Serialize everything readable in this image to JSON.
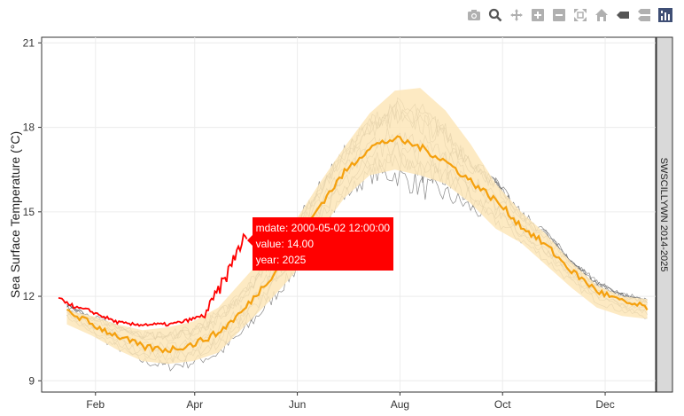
{
  "chart_data": {
    "type": "line",
    "ylabel": "Sea Surface Temperature (°C)",
    "facet_label": "SWSCILLYWN 2014-2025",
    "x_tick_labels": [
      "Feb",
      "Apr",
      "Jun",
      "Aug",
      "Oct",
      "Dec"
    ],
    "x_tick_doy": [
      32,
      91,
      152,
      213,
      274,
      335
    ],
    "xlim_doy": [
      0,
      365
    ],
    "ylim": [
      8.6,
      21.2
    ],
    "y_ticks": [
      9,
      12,
      15,
      18,
      21
    ],
    "grid": true,
    "colors": {
      "band": "#fde6b8",
      "mean": "#f5a00d",
      "highlight": "#ff0000",
      "history": "#555555",
      "strip": "#d9d9d9"
    },
    "band_upper": {
      "x": [
        15,
        30,
        45,
        60,
        75,
        90,
        105,
        120,
        135,
        150,
        165,
        180,
        195,
        210,
        225,
        240,
        255,
        270,
        285,
        300,
        315,
        330,
        345,
        360
      ],
      "y": [
        11.5,
        11.3,
        11.0,
        10.8,
        10.9,
        11.1,
        11.6,
        12.6,
        13.6,
        14.6,
        16.0,
        17.3,
        18.5,
        19.3,
        19.4,
        18.6,
        17.4,
        16.0,
        15.0,
        14.2,
        13.2,
        12.4,
        12.0,
        11.9
      ]
    },
    "band_lower": {
      "x": [
        15,
        30,
        45,
        60,
        75,
        90,
        105,
        120,
        135,
        150,
        165,
        180,
        195,
        210,
        225,
        240,
        255,
        270,
        285,
        300,
        315,
        330,
        345,
        360
      ],
      "y": [
        11.0,
        10.6,
        10.1,
        9.7,
        9.6,
        9.7,
        10.0,
        10.9,
        11.8,
        12.8,
        14.3,
        15.5,
        16.3,
        16.5,
        16.3,
        16.0,
        15.3,
        14.4,
        13.9,
        13.1,
        12.3,
        11.6,
        11.3,
        11.2
      ]
    },
    "mean": {
      "x": [
        15,
        30,
        45,
        60,
        75,
        90,
        105,
        120,
        135,
        150,
        165,
        180,
        195,
        210,
        225,
        240,
        255,
        270,
        285,
        300,
        315,
        330,
        345,
        360
      ],
      "y": [
        11.5,
        11.0,
        10.6,
        10.2,
        10.1,
        10.3,
        10.7,
        11.5,
        12.6,
        13.7,
        15.2,
        16.4,
        17.3,
        17.6,
        17.3,
        16.8,
        16.1,
        15.4,
        14.5,
        13.8,
        12.9,
        12.2,
        11.8,
        11.6
      ]
    },
    "highlight_series": {
      "name": "2025",
      "x": [
        10,
        15,
        20,
        28,
        36,
        44,
        52,
        60,
        68,
        76,
        84,
        90,
        95,
        100,
        104,
        108,
        112,
        116,
        120,
        122
      ],
      "y": [
        11.9,
        11.8,
        11.6,
        11.5,
        11.3,
        11.1,
        11.0,
        11.0,
        11.0,
        11.0,
        11.1,
        11.2,
        11.3,
        11.6,
        12.1,
        12.5,
        13.0,
        13.6,
        14.0,
        14.0
      ]
    },
    "tooltip": {
      "doy": 122,
      "value": 14.0,
      "line1": "mdate: 2000-05-02 12:00:00",
      "line2": "value: 14.00",
      "line3": "year: 2025"
    }
  },
  "modebar": [
    {
      "name": "camera-icon"
    },
    {
      "name": "zoom-icon"
    },
    {
      "name": "pan-icon"
    },
    {
      "name": "zoom-in-icon"
    },
    {
      "name": "zoom-out-icon"
    },
    {
      "name": "autoscale-icon"
    },
    {
      "name": "home-icon"
    },
    {
      "name": "spike-lines-icon"
    },
    {
      "name": "compare-hover-icon"
    },
    {
      "name": "plotly-logo-icon"
    }
  ]
}
